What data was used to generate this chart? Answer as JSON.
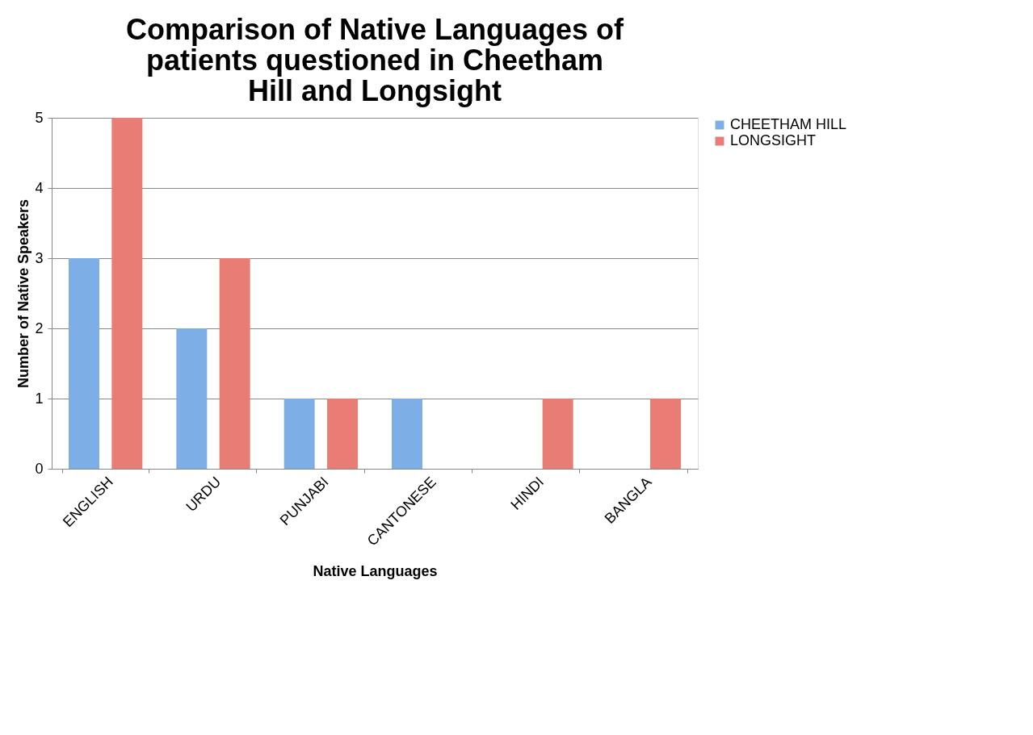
{
  "chart_data": {
    "type": "bar",
    "title": "Comparison of Native Languages of patients questioned in Cheetham Hill and Longsight",
    "xlabel": "Native Languages",
    "ylabel": "Number of Native Speakers",
    "categories": [
      "ENGLISH",
      "URDU",
      "PUNJABI",
      "CANTONESE",
      "HINDI",
      "BANGLA"
    ],
    "series": [
      {
        "name": "CHEETHAM HILL",
        "color": "#7eaee6",
        "values": [
          3,
          2,
          1,
          1,
          0,
          0
        ]
      },
      {
        "name": "LONGSIGHT",
        "color": "#e97c74",
        "values": [
          5,
          3,
          1,
          0,
          1,
          1
        ]
      }
    ],
    "ylim": [
      0,
      5
    ],
    "yticks": [
      0,
      1,
      2,
      3,
      4,
      5
    ],
    "grid": "y",
    "legend": "right"
  }
}
